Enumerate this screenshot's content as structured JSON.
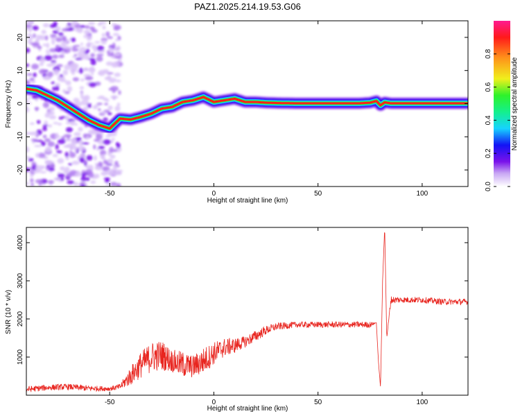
{
  "title": "PAZ1.2025.214.19.53.G06",
  "colors": {
    "snr_line": "#e8251f",
    "background": "#ffffff",
    "spectral_ridge": "#ff1e1e",
    "colormap": [
      "#ffffff",
      "#c8a6f4",
      "#7a12ea",
      "#1313f5",
      "#16d3ff",
      "#14f08c",
      "#2ef22a",
      "#f0f01c",
      "#ff8f1a",
      "#ff1a1a",
      "#ff1a90"
    ]
  },
  "chart_data": [
    {
      "type": "heatmap",
      "xlabel": "Height of straight line (km)",
      "ylabel": "Frequency (Hz)",
      "xlim": [
        -90,
        122
      ],
      "ylim": [
        -25,
        25
      ],
      "xticks": [
        -50,
        0,
        50,
        100
      ],
      "yticks": [
        -20,
        -10,
        0,
        10,
        20
      ],
      "colorbar": {
        "label": "Normalized spectral amplitude",
        "range": [
          0,
          1
        ],
        "ticks": [
          0.0,
          0.2,
          0.4,
          0.6,
          0.8
        ]
      },
      "ridge": {
        "x": [
          -90,
          -85,
          -80,
          -75,
          -70,
          -65,
          -60,
          -55,
          -50,
          -45,
          -40,
          -35,
          -30,
          -25,
          -20,
          -15,
          -10,
          -5,
          0,
          5,
          10,
          15,
          20,
          25,
          30,
          40,
          50,
          60,
          70,
          75,
          78,
          80,
          82,
          85,
          90,
          100,
          110,
          122
        ],
        "y": [
          4.5,
          4.0,
          2.5,
          1.0,
          -1.0,
          -3.0,
          -5.0,
          -6.5,
          -7.5,
          -4.5,
          -4.8,
          -4.0,
          -3.0,
          -1.5,
          -1.0,
          0.5,
          1.0,
          2.0,
          0.5,
          1.0,
          1.5,
          0.5,
          0.5,
          0.3,
          0.2,
          0.1,
          0.1,
          0.1,
          0.1,
          0.3,
          0.8,
          -0.5,
          0.4,
          0.1,
          0.1,
          0.1,
          0.1,
          0.1
        ]
      }
    },
    {
      "type": "line",
      "xlabel": "Height of straight line (km)",
      "ylabel": "SNR (10 * v/v)",
      "xlim": [
        -90,
        122
      ],
      "ylim": [
        0,
        4400
      ],
      "xticks": [
        -50,
        0,
        50,
        100
      ],
      "yticks": [
        1000,
        2000,
        3000,
        4000
      ],
      "series": [
        {
          "x": [
            -90,
            -80,
            -70,
            -60,
            -50,
            -45,
            -40,
            -35,
            -30,
            -25,
            -20,
            -15,
            -10,
            -5,
            0,
            5,
            10,
            15,
            20,
            25,
            30,
            40,
            50,
            60,
            70,
            75,
            78,
            79,
            80,
            81,
            82,
            83,
            85,
            90,
            100,
            110,
            122
          ],
          "values": [
            150,
            200,
            220,
            180,
            170,
            220,
            500,
            800,
            1000,
            1050,
            900,
            800,
            750,
            900,
            1100,
            1250,
            1300,
            1400,
            1550,
            1700,
            1800,
            1850,
            1850,
            1850,
            1850,
            1850,
            1900,
            900,
            200,
            3000,
            4400,
            1500,
            2500,
            2500,
            2500,
            2450,
            2450
          ],
          "noise": [
            80,
            80,
            80,
            80,
            60,
            80,
            250,
            350,
            400,
            400,
            300,
            350,
            300,
            350,
            300,
            250,
            200,
            150,
            150,
            120,
            100,
            80,
            80,
            80,
            80,
            80,
            0,
            0,
            0,
            0,
            0,
            0,
            100,
            80,
            80,
            80,
            80
          ]
        }
      ]
    }
  ]
}
